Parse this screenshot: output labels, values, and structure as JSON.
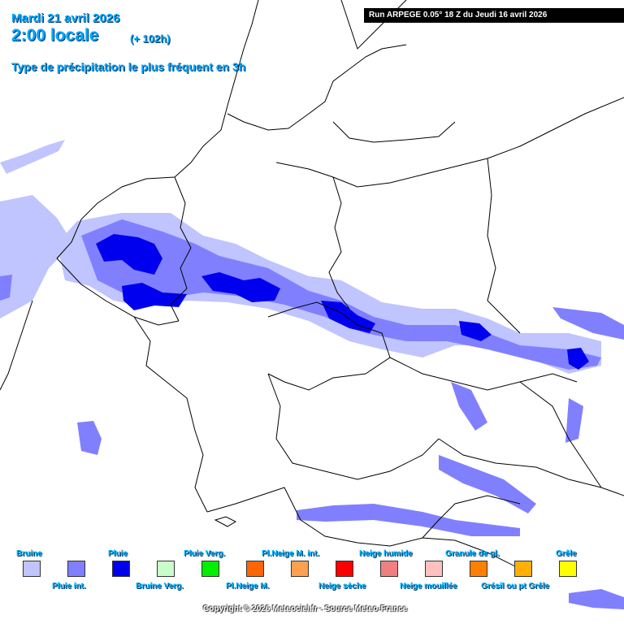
{
  "header": {
    "date": "Mardi 21 avril 2026",
    "time": "2:00 locale",
    "offset": "(+ 102h)",
    "type_label": "Type de précipitation le plus fréquent en 3h",
    "run": "Run ARPEGE 0.05° 18 Z du Jeudi 16 avril 2026"
  },
  "legend": [
    {
      "label": "Bruine",
      "color": "#c0c4ff"
    },
    {
      "label": "Pluie int.",
      "color": "#8080ff"
    },
    {
      "label": "Pluie",
      "color": "#0000ee"
    },
    {
      "label": "Bruine Verg.",
      "color": "#c8ffc8"
    },
    {
      "label": "Pluie Verg.",
      "color": "#00ee00"
    },
    {
      "label": "Pl.Neige M.",
      "color": "#ff6600"
    },
    {
      "label": "Pl.Neige M. int.",
      "color": "#ffa050"
    },
    {
      "label": "Neige sèche",
      "color": "#ff0000"
    },
    {
      "label": "Neige humide",
      "color": "#f08080"
    },
    {
      "label": "Neige mouillée",
      "color": "#ffc0c0"
    },
    {
      "label": "Granule de gl.",
      "color": "#ff8000"
    },
    {
      "label": "Grésil ou pt Grêle",
      "color": "#ffb000"
    },
    {
      "label": "Grêle",
      "color": "#ffff00"
    }
  ],
  "copyright": "Copyright © 2026 Meteociel.fr - Source Meteo-France",
  "colors": {
    "title": "#00a8ff",
    "border_line": "#000000",
    "drizzle": "#c0c4ff",
    "rain_int": "#8080ff",
    "rain": "#0000ee"
  }
}
